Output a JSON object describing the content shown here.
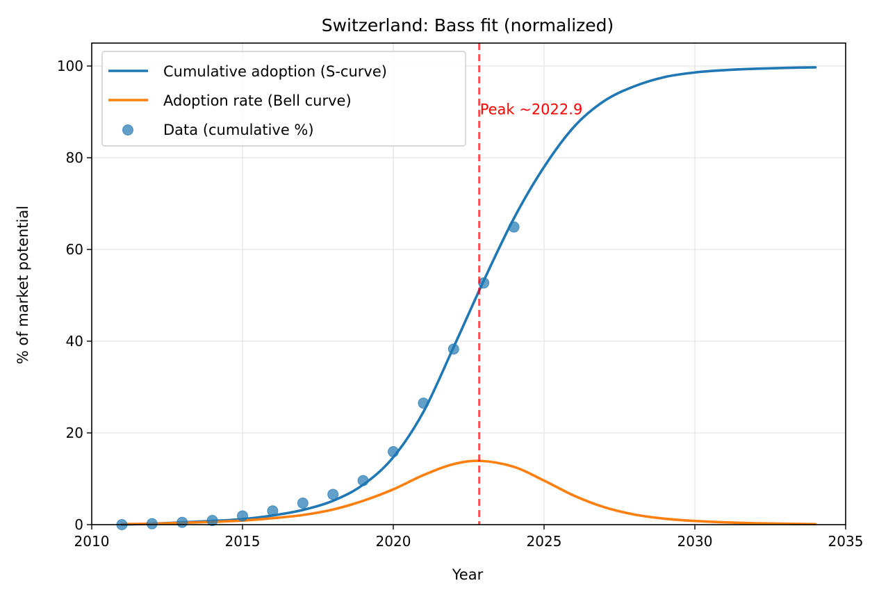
{
  "chart_data": {
    "type": "line",
    "title": "Switzerland: Bass fit (normalized)",
    "xlabel": "Year",
    "ylabel": "% of market potential",
    "xlim": [
      2010,
      2035
    ],
    "ylim": [
      0,
      105
    ],
    "x_ticks": [
      2010,
      2015,
      2020,
      2025,
      2030,
      2035
    ],
    "y_ticks": [
      0,
      20,
      40,
      60,
      80,
      100
    ],
    "grid": true,
    "legend_position": "top-left",
    "series": [
      {
        "name": "Cumulative adoption (S-curve)",
        "kind": "line",
        "color": "#1f77b4",
        "x": [
          2011,
          2012,
          2013,
          2014,
          2015,
          2016,
          2017,
          2018,
          2019,
          2020,
          2021,
          2022,
          2023,
          2024,
          2025,
          2026,
          2027,
          2028,
          2029,
          2030,
          2031,
          2032,
          2033,
          2034
        ],
        "values": [
          0.0,
          0.2,
          0.5,
          0.8,
          1.2,
          2.0,
          3.2,
          5.2,
          8.7,
          14.7,
          24.6,
          38.7,
          53.2,
          66.8,
          78.0,
          86.8,
          92.4,
          95.6,
          97.6,
          98.6,
          99.1,
          99.4,
          99.6,
          99.7
        ]
      },
      {
        "name": "Adoption rate (Bell curve)",
        "kind": "line",
        "color": "#ff7f0e",
        "x": [
          2011,
          2012,
          2013,
          2014,
          2015,
          2016,
          2017,
          2018,
          2019,
          2020,
          2021,
          2022,
          2022.9,
          2024,
          2025,
          2026,
          2027,
          2028,
          2029,
          2030,
          2031,
          2032,
          2033,
          2034
        ],
        "values": [
          0.1,
          0.2,
          0.4,
          0.6,
          0.9,
          1.4,
          2.1,
          3.3,
          5.2,
          7.7,
          10.8,
          13.2,
          13.9,
          12.6,
          9.6,
          6.3,
          3.8,
          2.2,
          1.3,
          0.8,
          0.5,
          0.3,
          0.2,
          0.1
        ]
      },
      {
        "name": "Data (cumulative %)",
        "kind": "scatter",
        "color": "#1f77b4",
        "x": [
          2011,
          2012,
          2013,
          2014,
          2015,
          2016,
          2017,
          2018,
          2019,
          2020,
          2021,
          2022,
          2023,
          2024
        ],
        "values": [
          0.0,
          0.2,
          0.5,
          0.9,
          1.9,
          3.0,
          4.7,
          6.6,
          9.6,
          15.9,
          26.5,
          38.3,
          52.7,
          64.9
        ]
      }
    ],
    "annotations": [
      {
        "type": "vline",
        "x": 2022.85,
        "color": "#ff0000",
        "style": "dashed"
      },
      {
        "type": "text",
        "text": "Peak ~2022.9",
        "x": 2022.85,
        "y": 90.5,
        "color": "#ff0000"
      }
    ]
  }
}
